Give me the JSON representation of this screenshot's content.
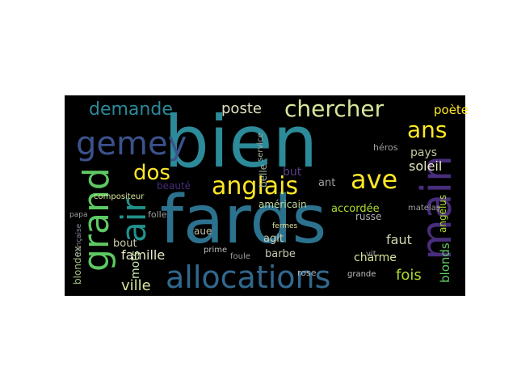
{
  "words": [
    "bien",
    "fards",
    "allocations",
    "gemey",
    "grand",
    "air",
    "main",
    "anglais",
    "chercher",
    "demande",
    "dos",
    "ave",
    "ans",
    "poste",
    "poète",
    "famille",
    "mots",
    "ville",
    "soleil",
    "pays",
    "faut",
    "charme",
    "fois",
    "blonds",
    "accordée",
    "américain",
    "barbe",
    "agit",
    "belle",
    "beauté",
    "bout",
    "aue",
    "but",
    "ant",
    "blondex",
    "compositeur",
    "folle",
    "papa",
    "française",
    "rose",
    "grande",
    "prime",
    "foule",
    "fermes",
    "service",
    "héros",
    "matelas",
    "angélus",
    "russe",
    "vit"
  ]
}
